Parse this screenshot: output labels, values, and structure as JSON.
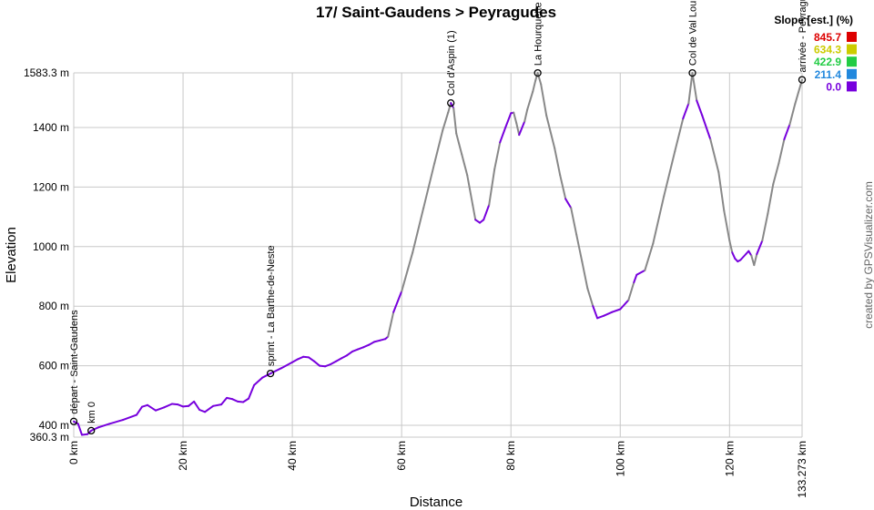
{
  "chart_data": {
    "type": "line",
    "title": "17/ Saint-Gaudens > Peyragudes",
    "xlabel": "Distance",
    "ylabel": "Elevation",
    "xlim": [
      0,
      133.273
    ],
    "ylim": [
      360.3,
      1583.3
    ],
    "x_ticks": [
      {
        "value": 0,
        "label": "0 km"
      },
      {
        "value": 20,
        "label": "20 km"
      },
      {
        "value": 40,
        "label": "40 km"
      },
      {
        "value": 60,
        "label": "60 km"
      },
      {
        "value": 80,
        "label": "80 km"
      },
      {
        "value": 100,
        "label": "100 km"
      },
      {
        "value": 120,
        "label": "120 km"
      },
      {
        "value": 133.273,
        "label": "133.273 km"
      }
    ],
    "y_ticks": [
      {
        "value": 360.3,
        "label": "360.3 m"
      },
      {
        "value": 400,
        "label": "400 m"
      },
      {
        "value": 600,
        "label": "600 m"
      },
      {
        "value": 800,
        "label": "800 m"
      },
      {
        "value": 1000,
        "label": "1000 m"
      },
      {
        "value": 1200,
        "label": "1200 m"
      },
      {
        "value": 1400,
        "label": "1400 m"
      },
      {
        "value": 1583.3,
        "label": "1583.3 m"
      }
    ],
    "grid": true,
    "series": [
      {
        "x": [
          0,
          0.8,
          1.5,
          2.5,
          3.2,
          4.5,
          6.5,
          9,
          11.5,
          12.5,
          13.5,
          15,
          16.5,
          18,
          19,
          20,
          21,
          22,
          23,
          24,
          25.5,
          27,
          28,
          29,
          30,
          31,
          32,
          33,
          34.5,
          36,
          38,
          40,
          41,
          42,
          43,
          44,
          45,
          46,
          47,
          48,
          49,
          50,
          51,
          52,
          53,
          54,
          55,
          56,
          57,
          57.5,
          58.5,
          60,
          62,
          64,
          66,
          67.5,
          68.5,
          69,
          69.5,
          70,
          71,
          72,
          73,
          73.5,
          74.3,
          75,
          76,
          77,
          78,
          79,
          80,
          80.5,
          81,
          81.5,
          82.5,
          83,
          84,
          84.5,
          84.9,
          85.5,
          86.5,
          88,
          89,
          90,
          91,
          92,
          93,
          94,
          95,
          95.8,
          97,
          98.5,
          100,
          101.5,
          102.5,
          103,
          104.5,
          106,
          108,
          110,
          111.5,
          112.5,
          113.2,
          114,
          115,
          116.5,
          118,
          119,
          120,
          120.5,
          121,
          121.5,
          122,
          123,
          123.5,
          124,
          124.5,
          125,
          126,
          127,
          128,
          129,
          130,
          131,
          132,
          133.273
        ],
        "y": [
          413,
          405,
          368,
          370,
          382,
          393,
          405,
          418,
          435,
          462,
          468,
          450,
          460,
          472,
          470,
          463,
          465,
          480,
          452,
          445,
          465,
          470,
          492,
          488,
          480,
          478,
          490,
          535,
          560,
          574,
          592,
          612,
          622,
          630,
          628,
          615,
          600,
          598,
          605,
          615,
          625,
          635,
          648,
          655,
          662,
          670,
          680,
          685,
          690,
          698,
          780,
          850,
          980,
          1130,
          1280,
          1390,
          1450,
          1482,
          1465,
          1380,
          1310,
          1240,
          1140,
          1090,
          1080,
          1090,
          1140,
          1260,
          1350,
          1400,
          1448,
          1450,
          1415,
          1375,
          1420,
          1460,
          1520,
          1558,
          1583,
          1545,
          1440,
          1330,
          1240,
          1160,
          1130,
          1040,
          950,
          860,
          800,
          760,
          768,
          780,
          790,
          820,
          880,
          905,
          920,
          1010,
          1170,
          1320,
          1430,
          1480,
          1583,
          1490,
          1440,
          1360,
          1250,
          1120,
          1020,
          980,
          960,
          950,
          955,
          975,
          985,
          970,
          938,
          975,
          1020,
          1110,
          1210,
          1280,
          1360,
          1410,
          1480,
          1560
        ]
      }
    ],
    "slope_legend": {
      "title": "Slope [est.] (%)",
      "entries": [
        {
          "label": "845.7",
          "color": "#dd0000"
        },
        {
          "label": "634.3",
          "color": "#cccc00"
        },
        {
          "label": "422.9",
          "color": "#22cc44"
        },
        {
          "label": "211.4",
          "color": "#2288dd"
        },
        {
          "label": "0.0",
          "color": "#7700dd"
        }
      ]
    },
    "line_colors": {
      "gentle": "#7700dd",
      "steep": "#888888"
    },
    "waypoints": [
      {
        "x": 0,
        "y": 413,
        "label": "départ - Saint-Gaudens"
      },
      {
        "x": 3.2,
        "y": 382,
        "label": "km 0"
      },
      {
        "x": 36,
        "y": 574,
        "label": "sprint - La Barthe-de-Neste"
      },
      {
        "x": 69,
        "y": 1482,
        "label": "Col d'Aspin (1)"
      },
      {
        "x": 84.9,
        "y": 1583,
        "label": "La Hourquette"
      },
      {
        "x": 113.2,
        "y": 1583,
        "label": "Col de Val Louron"
      },
      {
        "x": 133.273,
        "y": 1560,
        "label": "arrivée - Peyragudes"
      }
    ],
    "credit": "created by GPSVisualizer.com"
  }
}
